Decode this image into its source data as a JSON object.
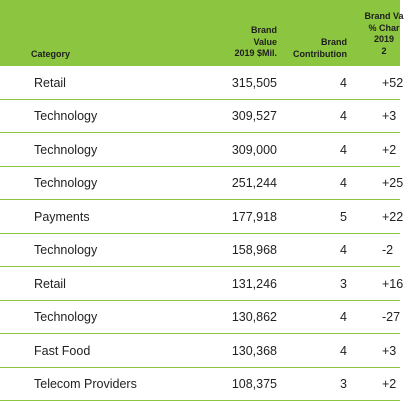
{
  "table": {
    "headers": {
      "category": "Category",
      "brand_value": [
        "Brand",
        "Value",
        "2019 $Mil."
      ],
      "brand_contribution": [
        "Brand",
        "Contribution"
      ],
      "pct_change": [
        "Brand Va",
        "% Char",
        "2019",
        "2"
      ]
    },
    "rows": [
      {
        "category": "Retail",
        "brand_value": "315,505",
        "brand_contribution": "4",
        "pct_change": "+52"
      },
      {
        "category": "Technology",
        "brand_value": "309,527",
        "brand_contribution": "4",
        "pct_change": "+3"
      },
      {
        "category": "Technology",
        "brand_value": "309,000",
        "brand_contribution": "4",
        "pct_change": "+2"
      },
      {
        "category": "Technology",
        "brand_value": "251,244",
        "brand_contribution": "4",
        "pct_change": "+25"
      },
      {
        "category": "Payments",
        "brand_value": "177,918",
        "brand_contribution": "5",
        "pct_change": "+22"
      },
      {
        "category": "Technology",
        "brand_value": "158,968",
        "brand_contribution": "4",
        "pct_change": "-2"
      },
      {
        "category": "Retail",
        "brand_value": "131,246",
        "brand_contribution": "3",
        "pct_change": "+16"
      },
      {
        "category": "Technology",
        "brand_value": "130,862",
        "brand_contribution": "4",
        "pct_change": "-27"
      },
      {
        "category": "Fast Food",
        "brand_value": "130,368",
        "brand_contribution": "4",
        "pct_change": "+3"
      },
      {
        "category": "Telecom Providers",
        "brand_value": "108,375",
        "brand_contribution": "3",
        "pct_change": "+2"
      }
    ]
  },
  "colors": {
    "header_background": "#8cc53f",
    "row_divider": "#8cc53f",
    "text": "#222222"
  }
}
